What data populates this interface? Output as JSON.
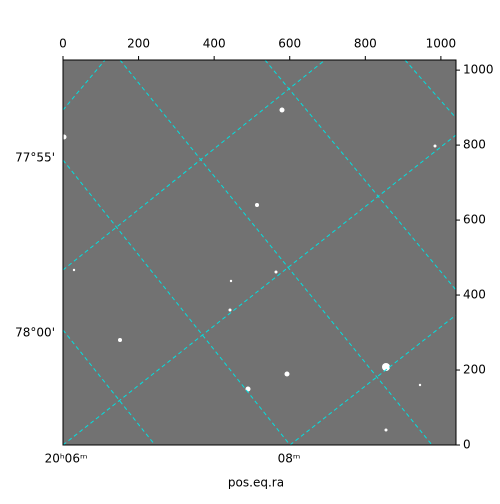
{
  "chart_data": {
    "type": "image",
    "xlabel": "pos.eq.ra",
    "xlim": [
      0,
      1040
    ],
    "xticks": [
      0,
      200,
      400,
      600,
      800,
      1000
    ],
    "ylim": [
      0,
      1027
    ],
    "yticks": [
      0,
      200,
      400,
      600,
      800,
      1000
    ],
    "dec_ticks": [
      "77°55'",
      "78°00'"
    ],
    "ra_ticks": [
      "20ʰ06ᵐ",
      "08ᵐ"
    ]
  }
}
